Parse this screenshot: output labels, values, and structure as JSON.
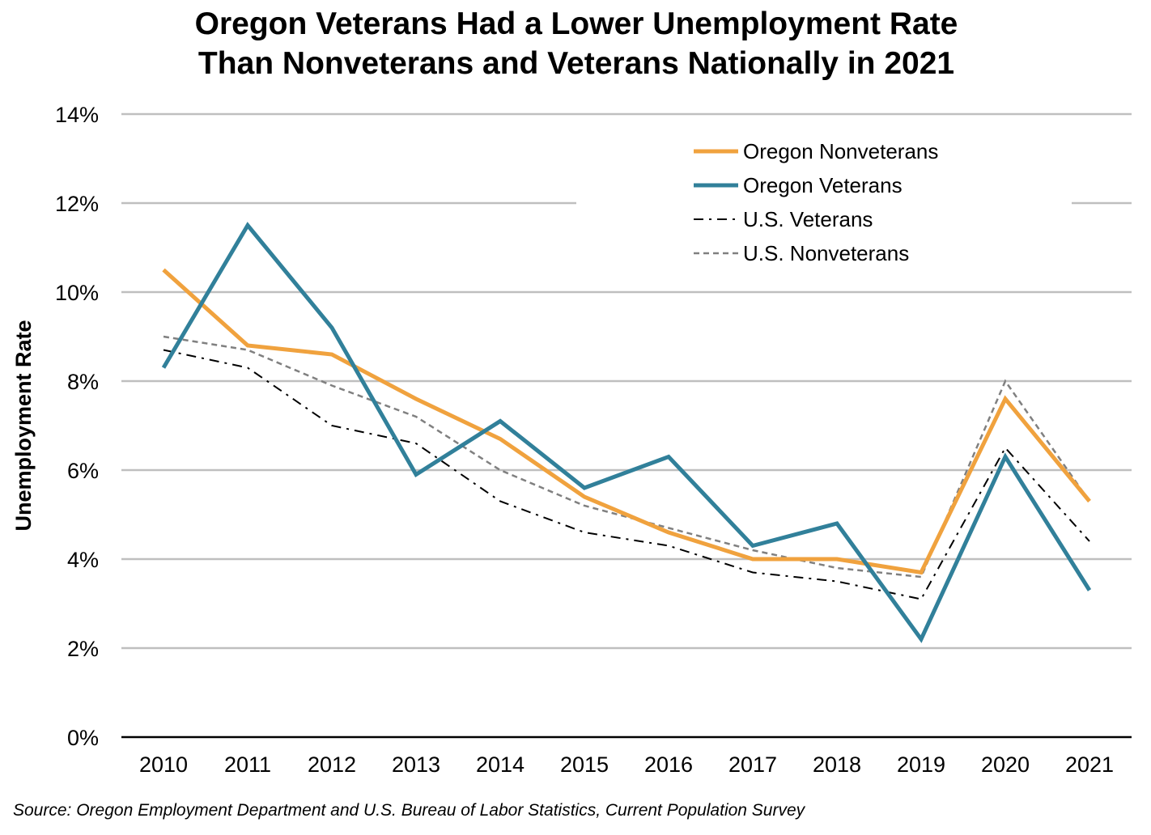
{
  "chart_data": {
    "type": "line",
    "title_lines": [
      "Oregon Veterans Had a Lower Unemployment Rate",
      "Than Nonveterans and Veterans Nationally in 2021"
    ],
    "ylabel": "Unemployment Rate",
    "xlabel": "",
    "categories": [
      "2010",
      "2011",
      "2012",
      "2013",
      "2014",
      "2015",
      "2016",
      "2017",
      "2018",
      "2019",
      "2020",
      "2021"
    ],
    "ylim": [
      0,
      14
    ],
    "ytick_values": [
      0,
      2,
      4,
      6,
      8,
      10,
      12,
      14
    ],
    "ytick_labels": [
      "0%",
      "2%",
      "4%",
      "6%",
      "8%",
      "10%",
      "12%",
      "14%"
    ],
    "grid": true,
    "legend_position": "top-right",
    "series": [
      {
        "name": "Oregon Nonveterans",
        "color": "#F0A23E",
        "style": "solid",
        "values": [
          10.5,
          8.8,
          8.6,
          7.6,
          6.7,
          5.4,
          4.6,
          4.0,
          4.0,
          3.7,
          7.6,
          5.3
        ]
      },
      {
        "name": "Oregon Veterans",
        "color": "#31809A",
        "style": "solid",
        "values": [
          8.3,
          11.5,
          9.2,
          5.9,
          7.1,
          5.6,
          6.3,
          4.3,
          4.8,
          2.2,
          6.3,
          3.3
        ]
      },
      {
        "name": "U.S. Veterans",
        "color": "#000000",
        "style": "dashdot",
        "values": [
          8.7,
          8.3,
          7.0,
          6.6,
          5.3,
          4.6,
          4.3,
          3.7,
          3.5,
          3.1,
          6.5,
          4.4
        ]
      },
      {
        "name": "U.S. Nonveterans",
        "color": "#808080",
        "style": "dash",
        "values": [
          9.0,
          8.7,
          7.9,
          7.2,
          6.0,
          5.2,
          4.7,
          4.2,
          3.8,
          3.6,
          8.0,
          5.3
        ]
      }
    ],
    "source": "Source: Oregon Employment Department and U.S. Bureau of Labor Statistics, Current Population Survey"
  }
}
